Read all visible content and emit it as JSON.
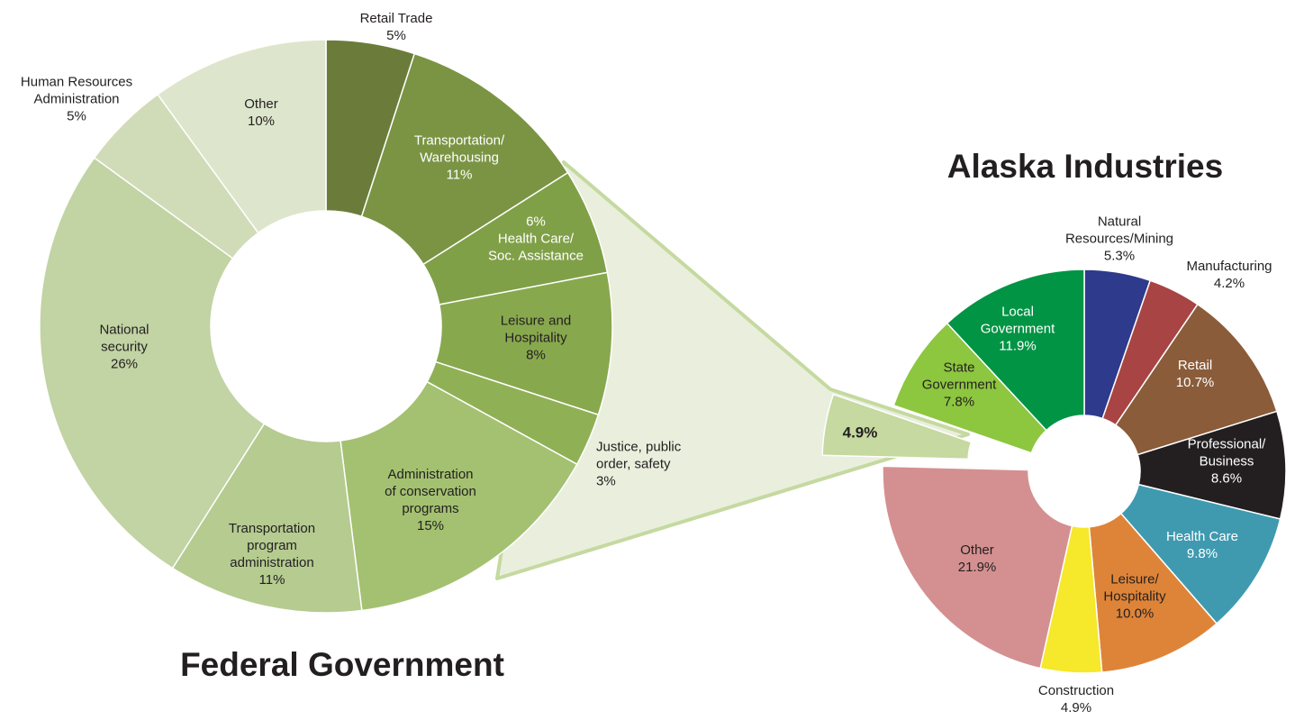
{
  "chart_data": [
    {
      "type": "donut",
      "title": "Federal Government",
      "categories": [
        "Retail Trade",
        "Transportation/\nWarehousing",
        "Health Care/\nSoc. Assistance",
        "Leisure and\nHospitality",
        "Justice, public\norder, safety",
        "Administration\nof conservation\nprograms",
        "Transportation\nprogram\nadministration",
        "National\nsecurity",
        "Human Resources\nAdministration",
        "Other"
      ],
      "values": [
        5,
        11,
        6,
        8,
        3,
        15,
        11,
        26,
        5,
        10
      ],
      "value_labels": [
        "5%",
        "11%",
        "6%",
        "8%",
        "3%",
        "15%",
        "11%",
        "26%",
        "5%",
        "10%"
      ],
      "colors": [
        "#6b7c3a",
        "#7a9443",
        "#80a048",
        "#88a84e",
        "#90b056",
        "#a3c170",
        "#b5cb90",
        "#c2d3a4",
        "#d0dcb8",
        "#dde6cc"
      ]
    },
    {
      "type": "donut",
      "title": "Alaska Industries",
      "categories": [
        "Natural\nResources/Mining",
        "Manufacturing",
        "Retail",
        "Professional/\nBusiness",
        "Health Care",
        "Leisure/\nHospitality",
        "Construction",
        "Other",
        null,
        "State\nGovernment",
        "Local\nGovernment"
      ],
      "values": [
        5.3,
        4.2,
        10.7,
        8.6,
        9.8,
        10.0,
        4.9,
        21.9,
        4.9,
        7.8,
        11.9
      ],
      "value_labels": [
        "5.3%",
        "4.2%",
        "10.7%",
        "8.6%",
        "9.8%",
        "10.0%",
        "4.9%",
        "21.9%",
        "4.9%",
        "7.8%",
        "11.9%"
      ],
      "colors": [
        "#2e3a8c",
        "#a84444",
        "#8a5c3a",
        "#231f20",
        "#3f9ab0",
        "#de8438",
        "#f6e82a",
        "#d49090",
        "#c5d9a0",
        "#8dc63f",
        "#009444"
      ]
    }
  ]
}
